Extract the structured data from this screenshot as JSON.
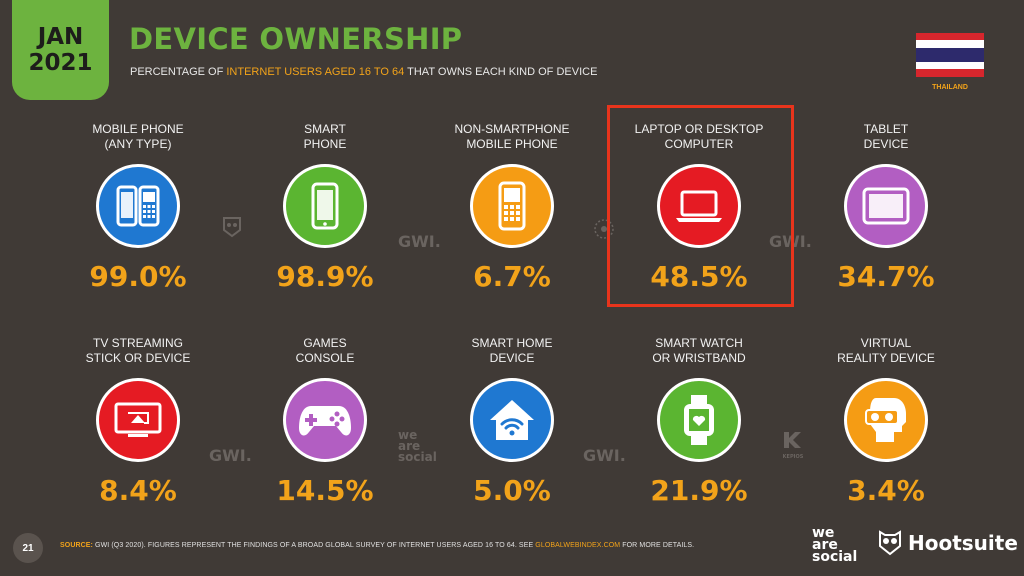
{
  "header": {
    "month": "JAN",
    "year": "2021",
    "title": "DEVICE OWNERSHIP",
    "subtitle_pre": "PERCENTAGE OF ",
    "subtitle_hl": "INTERNET USERS AGED 16 TO 64",
    "subtitle_post": " THAT OWNS EACH KIND OF DEVICE",
    "country": "THAILAND"
  },
  "devices": [
    {
      "label1": "MOBILE PHONE",
      "label2": "(ANY TYPE)",
      "value": "99.0%",
      "color": "#1f78d1",
      "icon": "mobile-phones-icon"
    },
    {
      "label1": "SMART",
      "label2": "PHONE",
      "value": "98.9%",
      "color": "#5bb531",
      "icon": "smartphone-icon"
    },
    {
      "label1": "NON-SMARTPHONE",
      "label2": "MOBILE PHONE",
      "value": "6.7%",
      "color": "#f59c14",
      "icon": "feature-phone-icon"
    },
    {
      "label1": "LAPTOP OR DESKTOP",
      "label2": "COMPUTER",
      "value": "48.5%",
      "color": "#e51b23",
      "icon": "laptop-icon"
    },
    {
      "label1": "TABLET",
      "label2": "DEVICE",
      "value": "34.7%",
      "color": "#b25ec2",
      "icon": "tablet-icon"
    },
    {
      "label1": "TV STREAMING",
      "label2": "STICK OR DEVICE",
      "value": "8.4%",
      "color": "#e51b23",
      "icon": "tv-streaming-icon"
    },
    {
      "label1": "GAMES",
      "label2": "CONSOLE",
      "value": "14.5%",
      "color": "#b25ec2",
      "icon": "gamepad-icon"
    },
    {
      "label1": "SMART HOME",
      "label2": "DEVICE",
      "value": "5.0%",
      "color": "#1f78d1",
      "icon": "smart-home-icon"
    },
    {
      "label1": "SMART WATCH",
      "label2": "OR WRISTBAND",
      "value": "21.9%",
      "color": "#5bb531",
      "icon": "smartwatch-icon"
    },
    {
      "label1": "VIRTUAL",
      "label2": "REALITY DEVICE",
      "value": "3.4%",
      "color": "#f59c14",
      "icon": "vr-headset-icon"
    }
  ],
  "watermarks": {
    "gwi": "GWI.",
    "was1": "we",
    "was2": "are",
    "was3": "social",
    "kepios": "KEPIOS"
  },
  "footer": {
    "page": "21",
    "source_label": "SOURCE:",
    "source_text": " GWI (Q3 2020). FIGURES REPRESENT THE FINDINGS OF A BROAD GLOBAL SURVEY OF INTERNET USERS AGED 16 TO 64. SEE ",
    "source_link": "GLOBALWEBINDEX.COM",
    "source_end": " FOR MORE DETAILS.",
    "brand1a": "we",
    "brand1b": "are",
    "brand1c": "social",
    "brand2": "Hootsuite"
  }
}
